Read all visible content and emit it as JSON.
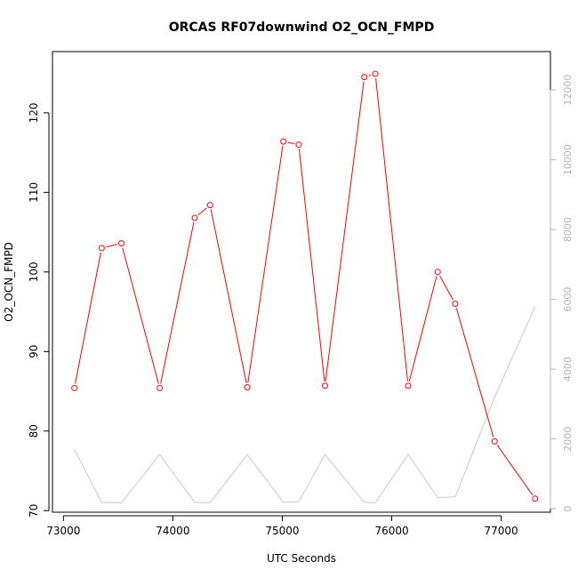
{
  "chart_data": {
    "type": "line",
    "title": "ORCAS RF07downwind O2_OCN_FMPD",
    "xlabel": "UTC Seconds",
    "ylabel": "O2_OCN_FMPD",
    "xlim": [
      72900,
      77450
    ],
    "ylim": [
      69.8,
      127.7
    ],
    "y2lim": [
      -100,
      13100
    ],
    "x_ticks": [
      73000,
      74000,
      75000,
      76000,
      77000
    ],
    "y_ticks": [
      70,
      80,
      90,
      100,
      110,
      120
    ],
    "y2_ticks": [
      0,
      2000,
      4000,
      6000,
      8000,
      10000,
      12000
    ],
    "series": [
      {
        "color": "#ff0000",
        "style": "line+circles",
        "x": [
          73100,
          73350,
          73530,
          73880,
          74200,
          74340,
          74680,
          75010,
          75150,
          75390,
          75750,
          75850,
          76150,
          76420,
          76580,
          76940,
          77310
        ],
        "y": [
          85.4,
          103.0,
          103.6,
          85.4,
          106.8,
          108.4,
          85.5,
          116.4,
          116.0,
          85.7,
          124.5,
          124.9,
          85.7,
          100.0,
          96.0,
          78.7,
          71.5
        ]
      },
      {
        "color": "#c8c8c8",
        "style": "line",
        "axis": "right",
        "x": [
          73100,
          73350,
          73530,
          73880,
          74200,
          74340,
          74680,
          75010,
          75150,
          75390,
          75750,
          75850,
          76150,
          76420,
          76580,
          76940,
          77310
        ],
        "y": [
          1700,
          180,
          170,
          1550,
          180,
          170,
          1550,
          180,
          200,
          1550,
          180,
          170,
          1550,
          320,
          340,
          3200,
          5800
        ]
      }
    ]
  }
}
